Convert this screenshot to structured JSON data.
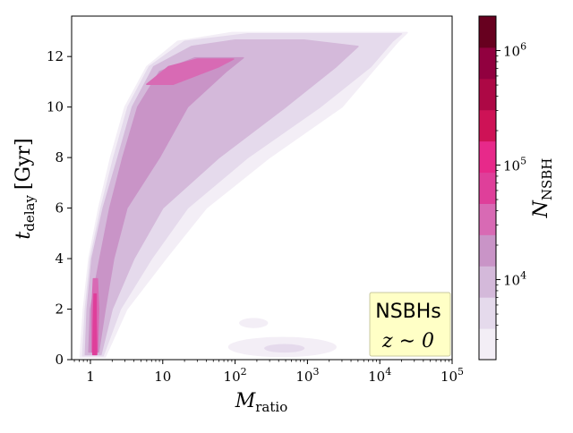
{
  "chart_data": {
    "type": "heatmap",
    "title": "",
    "xlabel": {
      "symbol": "M",
      "subscript": "ratio"
    },
    "ylabel": {
      "symbol": "t",
      "subscript": "delay",
      "unit": "[Gyr]"
    },
    "x_scale": "log",
    "xlim": [
      0.55,
      100000
    ],
    "ylim": [
      0,
      13.6
    ],
    "x_ticks": [
      {
        "value": 1,
        "label": "1"
      },
      {
        "value": 10,
        "label": "10"
      },
      {
        "value": 100,
        "label": "10",
        "exp": "2"
      },
      {
        "value": 1000,
        "label": "10",
        "exp": "3"
      },
      {
        "value": 10000,
        "label": "10",
        "exp": "4"
      },
      {
        "value": 100000,
        "label": "10",
        "exp": "5"
      }
    ],
    "y_ticks": [
      0,
      2,
      4,
      6,
      8,
      10,
      12
    ],
    "annotation": {
      "line1": "NSBHs",
      "line2": "z ∼ 0",
      "location": "bottom-right"
    },
    "colorbar": {
      "label_symbol": "N",
      "label_subscript": "NSBH",
      "scale": "log",
      "range": [
        2000,
        2000000
      ],
      "ticks": [
        {
          "value": 10000,
          "label": "10",
          "exp": "4"
        },
        {
          "value": 100000,
          "label": "10",
          "exp": "5"
        },
        {
          "value": 1000000,
          "label": "10",
          "exp": "6"
        }
      ],
      "colors": [
        "#f3eef6",
        "#e5daec",
        "#d4b9da",
        "#c994c7",
        "#d86ab4",
        "#df3f9a",
        "#e7298a",
        "#ce1256",
        "#ad0845",
        "#91003f",
        "#67001f"
      ]
    },
    "density_levels": [
      {
        "level": 1,
        "regions": [
          {
            "type": "band",
            "bounds": [
              [
                0.72,
                0.1,
                1.6
              ],
              [
                0.8,
                2,
                3.2
              ],
              [
                0.95,
                4,
                11
              ],
              [
                1.3,
                6,
                40
              ],
              [
                1.9,
                8,
                300
              ],
              [
                3,
                10,
                3000
              ],
              [
                6,
                11.6,
                9000
              ],
              [
                16,
                12.6,
                18000
              ],
              [
                90,
                12.95,
                24000
              ]
            ]
          },
          {
            "type": "ellipse",
            "x": 450,
            "y": 0.5,
            "x_halfwidth_decades": 0.75,
            "y_halfwidth": 0.4
          },
          {
            "type": "ellipse",
            "x": 180,
            "y": 1.45,
            "x_halfwidth_decades": 0.2,
            "y_halfwidth": 0.2
          }
        ]
      },
      {
        "level": 2,
        "regions": [
          {
            "type": "band",
            "bounds": [
              [
                0.78,
                0.15,
                1.5
              ],
              [
                0.85,
                2,
                2.6
              ],
              [
                1.0,
                4,
                7
              ],
              [
                1.4,
                6,
                22
              ],
              [
                2.1,
                8,
                150
              ],
              [
                3.3,
                10,
                1500
              ],
              [
                6.5,
                11.6,
                7500
              ],
              [
                20,
                12.6,
                15000
              ],
              [
                150,
                12.9,
                20000
              ]
            ]
          },
          {
            "type": "ellipse",
            "x": 480,
            "y": 0.45,
            "x_halfwidth_decades": 0.28,
            "y_halfwidth": 0.17
          }
        ]
      },
      {
        "level": 3,
        "regions": [
          {
            "type": "band",
            "bounds": [
              [
                0.85,
                0.2,
                1.4
              ],
              [
                0.9,
                2,
                2.0
              ],
              [
                1.05,
                4,
                4.0
              ],
              [
                1.5,
                6,
                10
              ],
              [
                2.4,
                8,
                60
              ],
              [
                3.8,
                10,
                500
              ],
              [
                7.5,
                11.6,
                2500
              ],
              [
                25,
                12.4,
                5000
              ],
              [
                100,
                12.65,
                900
              ]
            ]
          }
        ]
      },
      {
        "level": 4,
        "regions": [
          {
            "type": "band",
            "bounds": [
              [
                0.95,
                0.3,
                1.3
              ],
              [
                1.0,
                2,
                1.6
              ],
              [
                1.35,
                4,
                2.1
              ],
              [
                1.85,
                6,
                3.2
              ],
              [
                2.8,
                8,
                9
              ],
              [
                4.5,
                10,
                22
              ],
              [
                9,
                11.4,
                75
              ],
              [
                28,
                11.95,
                130
              ]
            ]
          }
        ]
      },
      {
        "level": 5,
        "regions": [
          {
            "type": "band",
            "bounds": [
              [
                1.05,
                0.3,
                1.25
              ],
              [
                1.05,
                2,
                1.3
              ],
              [
                1.1,
                3.2,
                1.25
              ]
            ]
          },
          {
            "type": "band",
            "bounds": [
              [
                6,
                10.9,
                14
              ],
              [
                12,
                11.6,
                60
              ],
              [
                30,
                11.9,
                95
              ]
            ]
          }
        ]
      },
      {
        "level": 6,
        "regions": [
          {
            "type": "band",
            "bounds": [
              [
                1.08,
                0.2,
                1.22
              ],
              [
                1.1,
                1.5,
                1.2
              ],
              [
                1.12,
                2.6,
                1.2
              ]
            ]
          }
        ]
      }
    ]
  }
}
